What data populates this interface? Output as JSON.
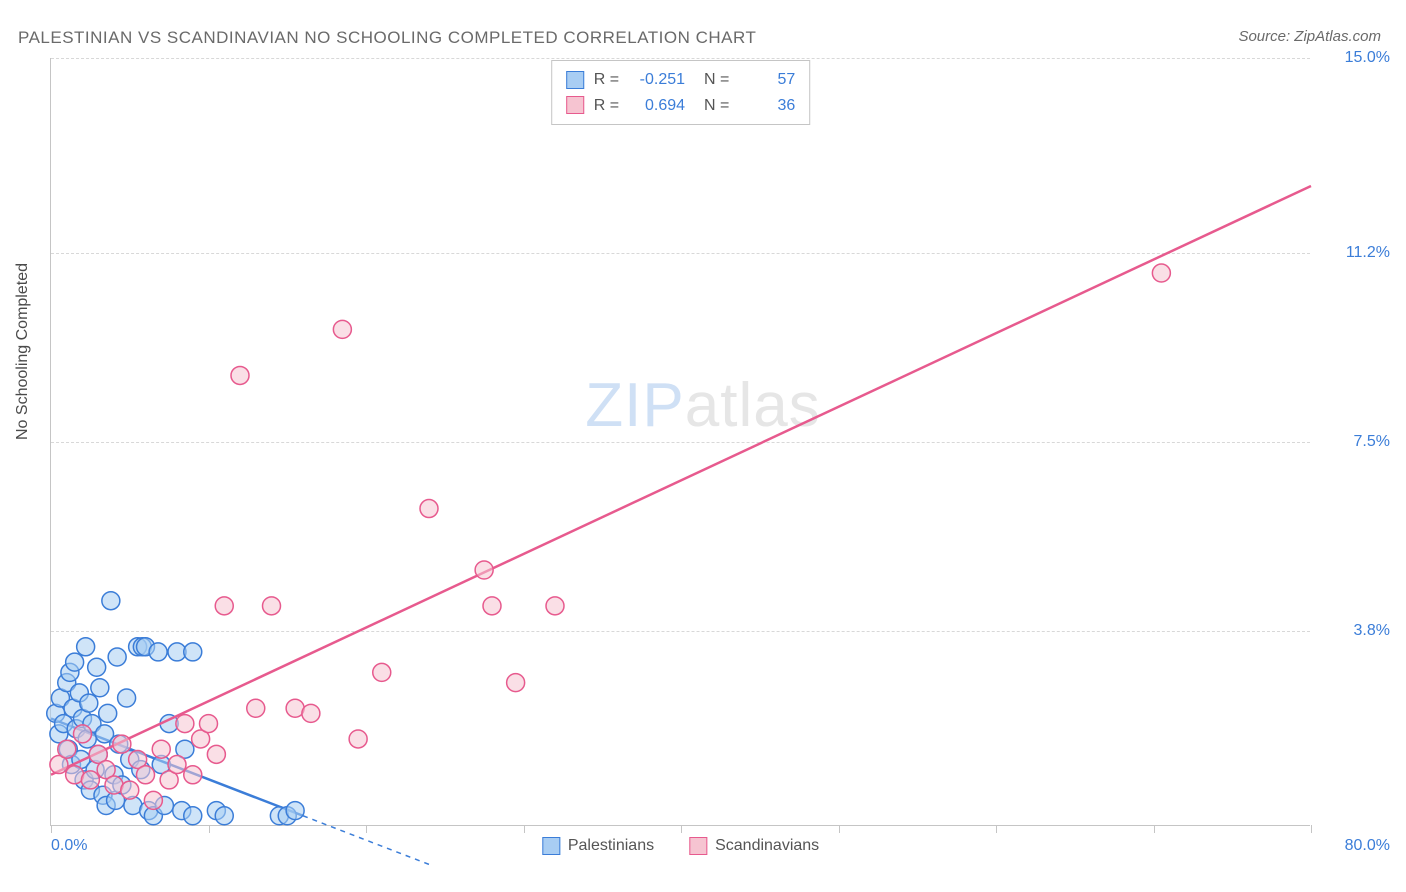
{
  "title": "PALESTINIAN VS SCANDINAVIAN NO SCHOOLING COMPLETED CORRELATION CHART",
  "source": "Source: ZipAtlas.com",
  "y_label": "No Schooling Completed",
  "watermark_zip": "ZIP",
  "watermark_atlas": "atlas",
  "chart": {
    "type": "scatter",
    "xlim": [
      0,
      80
    ],
    "ylim": [
      0,
      15
    ],
    "x_ticks": [
      0,
      10,
      20,
      30,
      40,
      50,
      60,
      70,
      80
    ],
    "x_tick_labels_shown": {
      "0": "0.0%",
      "80": "80.0%"
    },
    "y_ticks": [
      3.8,
      7.5,
      11.2,
      15.0
    ],
    "y_tick_labels": [
      "3.8%",
      "7.5%",
      "11.2%",
      "15.0%"
    ],
    "grid_color": "#d8d8d8",
    "axis_color": "#c5c5c5",
    "background_color": "#ffffff",
    "tick_label_color": "#3b7dd8",
    "marker_radius": 9,
    "marker_stroke_width": 1.5,
    "line_width": 2.5
  },
  "series": [
    {
      "name": "Palestinians",
      "fill_color": "#a8cdf3",
      "stroke_color": "#3b7dd8",
      "fill_opacity": 0.55,
      "R": "-0.251",
      "N": "57",
      "trend": {
        "x1": 0,
        "y1": 2.1,
        "x2": 16,
        "y2": 0.2,
        "dash_from_x": 16,
        "dash_to_x": 24
      },
      "points": [
        [
          0.3,
          2.2
        ],
        [
          0.5,
          1.8
        ],
        [
          0.6,
          2.5
        ],
        [
          0.8,
          2.0
        ],
        [
          1.0,
          2.8
        ],
        [
          1.1,
          1.5
        ],
        [
          1.2,
          3.0
        ],
        [
          1.3,
          1.2
        ],
        [
          1.4,
          2.3
        ],
        [
          1.5,
          3.2
        ],
        [
          1.6,
          1.9
        ],
        [
          1.8,
          2.6
        ],
        [
          1.9,
          1.3
        ],
        [
          2.0,
          2.1
        ],
        [
          2.1,
          0.9
        ],
        [
          2.2,
          3.5
        ],
        [
          2.3,
          1.7
        ],
        [
          2.4,
          2.4
        ],
        [
          2.5,
          0.7
        ],
        [
          2.6,
          2.0
        ],
        [
          2.8,
          1.1
        ],
        [
          2.9,
          3.1
        ],
        [
          3.0,
          1.4
        ],
        [
          3.1,
          2.7
        ],
        [
          3.3,
          0.6
        ],
        [
          3.4,
          1.8
        ],
        [
          3.5,
          0.4
        ],
        [
          3.6,
          2.2
        ],
        [
          3.8,
          4.4
        ],
        [
          4.0,
          1.0
        ],
        [
          4.1,
          0.5
        ],
        [
          4.2,
          3.3
        ],
        [
          4.3,
          1.6
        ],
        [
          4.5,
          0.8
        ],
        [
          4.8,
          2.5
        ],
        [
          5.0,
          1.3
        ],
        [
          5.2,
          0.4
        ],
        [
          5.5,
          3.5
        ],
        [
          5.7,
          1.1
        ],
        [
          5.8,
          3.5
        ],
        [
          6.0,
          3.5
        ],
        [
          6.2,
          0.3
        ],
        [
          6.5,
          0.2
        ],
        [
          6.8,
          3.4
        ],
        [
          7.0,
          1.2
        ],
        [
          7.2,
          0.4
        ],
        [
          7.5,
          2.0
        ],
        [
          8.0,
          3.4
        ],
        [
          8.3,
          0.3
        ],
        [
          8.5,
          1.5
        ],
        [
          9.0,
          0.2
        ],
        [
          9.0,
          3.4
        ],
        [
          10.5,
          0.3
        ],
        [
          11.0,
          0.2
        ],
        [
          14.5,
          0.2
        ],
        [
          15.0,
          0.2
        ],
        [
          15.5,
          0.3
        ]
      ]
    },
    {
      "name": "Scandinavians",
      "fill_color": "#f6c4d1",
      "stroke_color": "#e75a8e",
      "fill_opacity": 0.55,
      "R": "0.694",
      "N": "36",
      "trend": {
        "x1": 0,
        "y1": 1.0,
        "x2": 80,
        "y2": 12.5,
        "dash_from_x": 80,
        "dash_to_x": 80
      },
      "points": [
        [
          0.5,
          1.2
        ],
        [
          1.0,
          1.5
        ],
        [
          1.5,
          1.0
        ],
        [
          2.0,
          1.8
        ],
        [
          2.5,
          0.9
        ],
        [
          3.0,
          1.4
        ],
        [
          3.5,
          1.1
        ],
        [
          4.0,
          0.8
        ],
        [
          4.5,
          1.6
        ],
        [
          5.0,
          0.7
        ],
        [
          5.5,
          1.3
        ],
        [
          6.0,
          1.0
        ],
        [
          6.5,
          0.5
        ],
        [
          7.0,
          1.5
        ],
        [
          7.5,
          0.9
        ],
        [
          8.0,
          1.2
        ],
        [
          8.5,
          2.0
        ],
        [
          9.0,
          1.0
        ],
        [
          9.5,
          1.7
        ],
        [
          10.0,
          2.0
        ],
        [
          10.5,
          1.4
        ],
        [
          11.0,
          4.3
        ],
        [
          12.0,
          8.8
        ],
        [
          13.0,
          2.3
        ],
        [
          14.0,
          4.3
        ],
        [
          15.5,
          2.3
        ],
        [
          16.5,
          2.2
        ],
        [
          18.5,
          9.7
        ],
        [
          19.5,
          1.7
        ],
        [
          21.0,
          3.0
        ],
        [
          24.0,
          6.2
        ],
        [
          27.5,
          5.0
        ],
        [
          28.0,
          4.3
        ],
        [
          29.5,
          2.8
        ],
        [
          32.0,
          4.3
        ],
        [
          70.5,
          10.8
        ]
      ]
    }
  ],
  "legend_bottom": [
    "Palestinians",
    "Scandinavians"
  ]
}
